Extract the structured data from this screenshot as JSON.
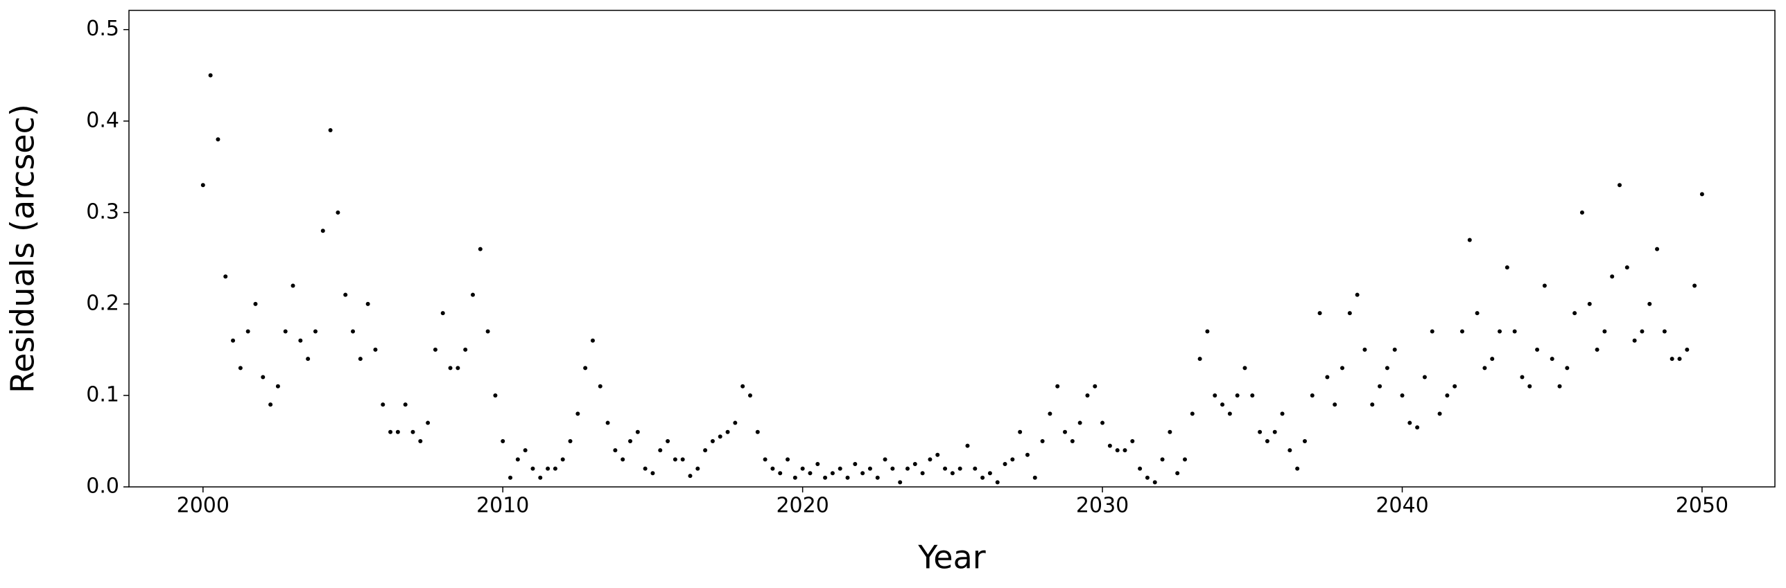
{
  "chart_data": {
    "type": "scatter",
    "xlabel": "Year",
    "ylabel": "Residuals (arcsec)",
    "color": "#000000",
    "xlim": [
      1997.53,
      2052.43
    ],
    "ylim": [
      0,
      0.521
    ],
    "xticks": [
      2000,
      2010,
      2020,
      2030,
      2040,
      2050
    ],
    "yticks": [
      {
        "value": 0,
        "label": "0.0"
      },
      0.1,
      0.2,
      0.3,
      0.4,
      0.5
    ],
    "x": [
      2000.0,
      2000.25,
      2000.5,
      2000.75,
      2001.0,
      2001.25,
      2001.5,
      2001.75,
      2002.0,
      2002.25,
      2002.5,
      2002.75,
      2003.0,
      2003.25,
      2003.5,
      2003.75,
      2004.0,
      2004.25,
      2004.5,
      2004.75,
      2005.0,
      2005.25,
      2005.5,
      2005.75,
      2006.0,
      2006.25,
      2006.5,
      2006.75,
      2007.0,
      2007.25,
      2007.5,
      2007.75,
      2008.0,
      2008.25,
      2008.5,
      2008.75,
      2009.0,
      2009.25,
      2009.5,
      2009.75,
      2010.0,
      2010.25,
      2010.5,
      2010.75,
      2011.0,
      2011.25,
      2011.5,
      2011.75,
      2012.0,
      2012.25,
      2012.5,
      2012.75,
      2013.0,
      2013.25,
      2013.5,
      2013.75,
      2014.0,
      2014.25,
      2014.5,
      2014.75,
      2015.0,
      2015.25,
      2015.5,
      2015.75,
      2016.0,
      2016.25,
      2016.5,
      2016.75,
      2017.0,
      2017.25,
      2017.5,
      2017.75,
      2018.0,
      2018.25,
      2018.5,
      2018.75,
      2019.0,
      2019.25,
      2019.5,
      2019.75,
      2020.0,
      2020.25,
      2020.5,
      2020.75,
      2021.0,
      2021.25,
      2021.5,
      2021.75,
      2022.0,
      2022.25,
      2022.5,
      2022.75,
      2023.0,
      2023.25,
      2023.5,
      2023.75,
      2024.0,
      2024.25,
      2024.5,
      2024.75,
      2025.0,
      2025.25,
      2025.5,
      2025.75,
      2026.0,
      2026.25,
      2026.5,
      2026.75,
      2027.0,
      2027.25,
      2027.5,
      2027.75,
      2028.0,
      2028.25,
      2028.5,
      2028.75,
      2029.0,
      2029.25,
      2029.5,
      2029.75,
      2030.0,
      2030.25,
      2030.5,
      2030.75,
      2031.0,
      2031.25,
      2031.5,
      2031.75,
      2032.0,
      2032.25,
      2032.5,
      2032.75,
      2033.0,
      2033.25,
      2033.5,
      2033.75,
      2034.0,
      2034.25,
      2034.5,
      2034.75,
      2035.0,
      2035.25,
      2035.5,
      2035.75,
      2036.0,
      2036.25,
      2036.5,
      2036.75,
      2037.0,
      2037.25,
      2037.5,
      2037.75,
      2038.0,
      2038.25,
      2038.5,
      2038.75,
      2039.0,
      2039.25,
      2039.5,
      2039.75,
      2040.0,
      2040.25,
      2040.5,
      2040.75,
      2041.0,
      2041.25,
      2041.5,
      2041.75,
      2042.0,
      2042.25,
      2042.5,
      2042.75,
      2043.0,
      2043.25,
      2043.5,
      2043.75,
      2044.0,
      2044.25,
      2044.5,
      2044.75,
      2045.0,
      2045.25,
      2045.5,
      2045.75,
      2046.0,
      2046.25,
      2046.5,
      2046.75,
      2047.0,
      2047.25,
      2047.5,
      2047.75,
      2048.0,
      2048.25,
      2048.5,
      2048.75,
      2049.0,
      2049.25,
      2049.5,
      2049.75,
      2050.0
    ],
    "values": [
      0.33,
      0.45,
      0.38,
      0.23,
      0.16,
      0.13,
      0.17,
      0.2,
      0.12,
      0.09,
      0.11,
      0.17,
      0.22,
      0.16,
      0.14,
      0.17,
      0.28,
      0.39,
      0.3,
      0.21,
      0.17,
      0.14,
      0.2,
      0.15,
      0.09,
      0.06,
      0.06,
      0.09,
      0.06,
      0.05,
      0.07,
      0.15,
      0.19,
      0.13,
      0.13,
      0.15,
      0.21,
      0.26,
      0.17,
      0.1,
      0.05,
      0.01,
      0.03,
      0.04,
      0.02,
      0.01,
      0.02,
      0.02,
      0.03,
      0.05,
      0.08,
      0.13,
      0.16,
      0.11,
      0.07,
      0.04,
      0.03,
      0.05,
      0.06,
      0.02,
      0.015,
      0.04,
      0.05,
      0.03,
      0.03,
      0.012,
      0.02,
      0.04,
      0.05,
      0.055,
      0.06,
      0.07,
      0.11,
      0.1,
      0.06,
      0.03,
      0.02,
      0.015,
      0.03,
      0.01,
      0.02,
      0.015,
      0.025,
      0.01,
      0.015,
      0.02,
      0.01,
      0.025,
      0.015,
      0.02,
      0.01,
      0.03,
      0.02,
      0.005,
      0.02,
      0.025,
      0.015,
      0.03,
      0.035,
      0.02,
      0.015,
      0.02,
      0.045,
      0.02,
      0.01,
      0.015,
      0.005,
      0.025,
      0.03,
      0.06,
      0.035,
      0.01,
      0.05,
      0.08,
      0.11,
      0.06,
      0.05,
      0.07,
      0.1,
      0.11,
      0.07,
      0.045,
      0.04,
      0.04,
      0.05,
      0.02,
      0.01,
      0.005,
      0.03,
      0.06,
      0.015,
      0.03,
      0.08,
      0.14,
      0.17,
      0.1,
      0.09,
      0.08,
      0.1,
      0.13,
      0.1,
      0.06,
      0.05,
      0.06,
      0.08,
      0.04,
      0.02,
      0.05,
      0.1,
      0.19,
      0.12,
      0.09,
      0.13,
      0.19,
      0.21,
      0.15,
      0.09,
      0.11,
      0.13,
      0.15,
      0.1,
      0.07,
      0.065,
      0.12,
      0.17,
      0.08,
      0.1,
      0.11,
      0.17,
      0.27,
      0.19,
      0.13,
      0.14,
      0.17,
      0.24,
      0.17,
      0.12,
      0.11,
      0.15,
      0.22,
      0.14,
      0.11,
      0.13,
      0.19,
      0.3,
      0.2,
      0.15,
      0.17,
      0.23,
      0.33,
      0.24,
      0.16,
      0.17,
      0.2,
      0.26,
      0.17,
      0.14,
      0.14,
      0.15,
      0.22,
      0.32
    ]
  }
}
